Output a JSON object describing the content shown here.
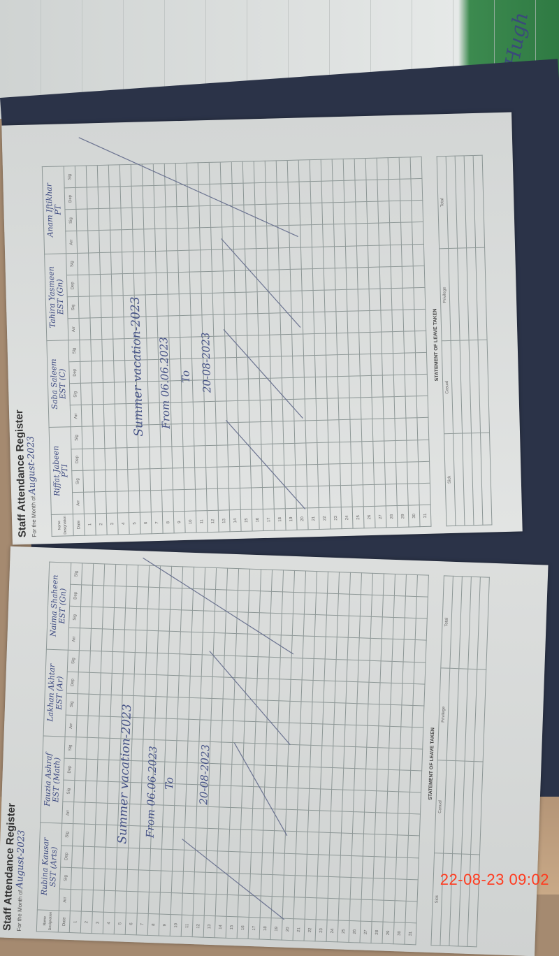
{
  "timestamp": "22-08-23  09:02",
  "background_scribble": "Hugh",
  "register": {
    "title": "Staff Attendance Register",
    "month_label": "For the Month of",
    "month_value": "August-2023",
    "name_label": "Name",
    "designation_label": "Designation",
    "date_label": "Date",
    "sub_columns": [
      "Arr",
      "Sig",
      "Dep",
      "Sig"
    ],
    "dates": [
      "1",
      "2",
      "3",
      "4",
      "5",
      "6",
      "7",
      "8",
      "9",
      "10",
      "11",
      "12",
      "13",
      "14",
      "15",
      "16",
      "17",
      "18",
      "19",
      "20",
      "21",
      "22",
      "23",
      "24",
      "25",
      "26",
      "27",
      "28",
      "29",
      "30",
      "31"
    ],
    "leave_heading": "STATEMENT OF LEAVE TAKEN",
    "leave_columns": [
      "Sick",
      "Casual",
      "Privilege",
      "Total"
    ]
  },
  "left_page": {
    "staff": [
      {
        "name": "Rubina Kausar",
        "designation": "SST (Arts)"
      },
      {
        "name": "Fauzia Ashraf",
        "designation": "EST (Math)"
      },
      {
        "name": "Lakhan Akhtar",
        "designation": "EST (Ar)"
      },
      {
        "name": "Naima Shaheen",
        "designation": "EST (Gn)"
      }
    ],
    "note_line1": "Summer vacation-2023",
    "note_line2": "From 06.06.2023",
    "note_line3": "To",
    "note_line4": "20-08-2023"
  },
  "right_page": {
    "staff": [
      {
        "name": "Riffat Jabeen",
        "designation": "PTI"
      },
      {
        "name": "Saba Saleem",
        "designation": "EST (C)"
      },
      {
        "name": "Tahira Yasmeen",
        "designation": "EST (Gn)"
      },
      {
        "name": "Anam Iftikhar",
        "designation": "PT"
      }
    ],
    "note_line1": "Summer vacation-2023",
    "note_line2": "From 06.06.2023",
    "note_line3": "To",
    "note_line4": "20-08-2023"
  },
  "colors": {
    "ink": "#455286",
    "paper": "#d6d9d8",
    "timestamp": "#ff3b1f"
  }
}
